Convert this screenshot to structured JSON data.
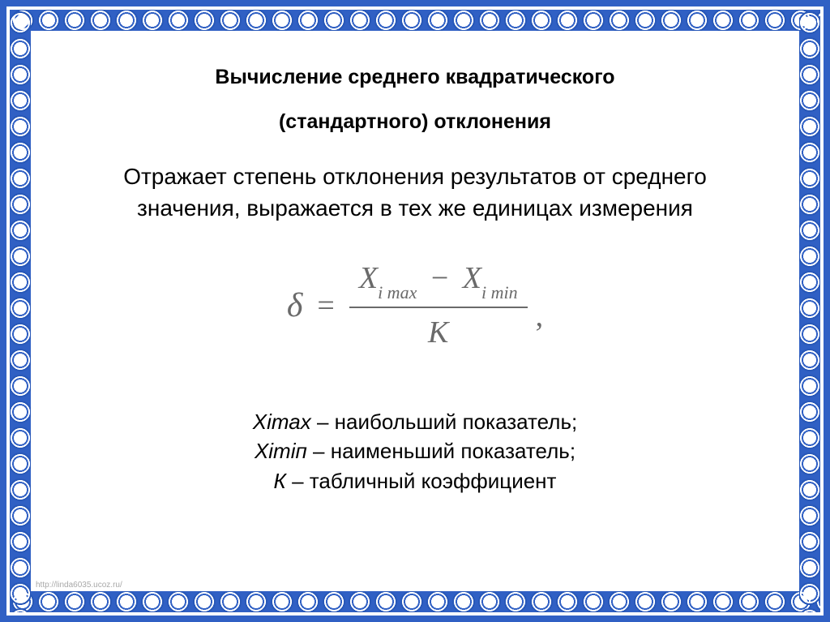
{
  "slide": {
    "title_line1": "Вычисление среднего квадратического",
    "title_line2": "(стандартного) отклонения",
    "description": "Отражает степень отклонения результатов от среднего значения, выражается в тех же единицах измерения",
    "formula": {
      "left_symbol": "δ",
      "equals": "=",
      "numerator_x1_base": "X",
      "numerator_x1_sub": "i max",
      "numerator_minus": "−",
      "numerator_x2_base": "X",
      "numerator_x2_sub": "i min",
      "denominator": "K",
      "trailing_comma": ","
    },
    "legend": {
      "line1_symbol": "Хiтах",
      "line1_text": " – наибольший показатель;",
      "line2_symbol": "Хiтiп",
      "line2_text": " – наименьший показатель;",
      "line3_symbol": "К",
      "line3_text": " – табличный коэффициент"
    },
    "watermark": "http://linda6035.ucoz.ru/"
  },
  "style": {
    "frame_outer_color": "#3060c4",
    "frame_pattern_color": "#ffffff",
    "content_bg": "#ffffff",
    "title_color": "#000000",
    "title_fontsize": 25,
    "title_fontweight": "bold",
    "description_fontsize": 28,
    "formula_color": "#6a6a6a",
    "formula_fontsize": 42,
    "legend_fontsize": 26,
    "watermark_color": "#a8a8a8",
    "watermark_fontsize": 10
  }
}
